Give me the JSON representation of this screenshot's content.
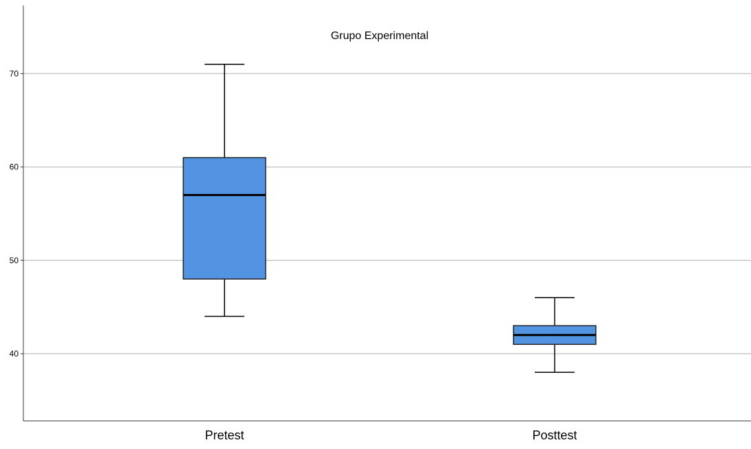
{
  "chart_data": {
    "type": "boxplot",
    "title": "Grupo Experimental",
    "xlabel": "",
    "ylabel": "",
    "categories": [
      "Pretest",
      "Posttest"
    ],
    "boxes": [
      {
        "category": "Pretest",
        "whisker_low": 44,
        "q1": 48,
        "median": 57,
        "q3": 61,
        "whisker_high": 71
      },
      {
        "category": "Posttest",
        "whisker_low": 38,
        "q1": 41,
        "median": 42,
        "q3": 43,
        "whisker_high": 46
      }
    ],
    "y_ticks": [
      40,
      50,
      60,
      70
    ],
    "ylim": [
      32.8,
      77.3
    ],
    "grid": true,
    "box_color": "#5294e2",
    "line_color": "#000000",
    "grid_color": "#c8c8c8"
  }
}
